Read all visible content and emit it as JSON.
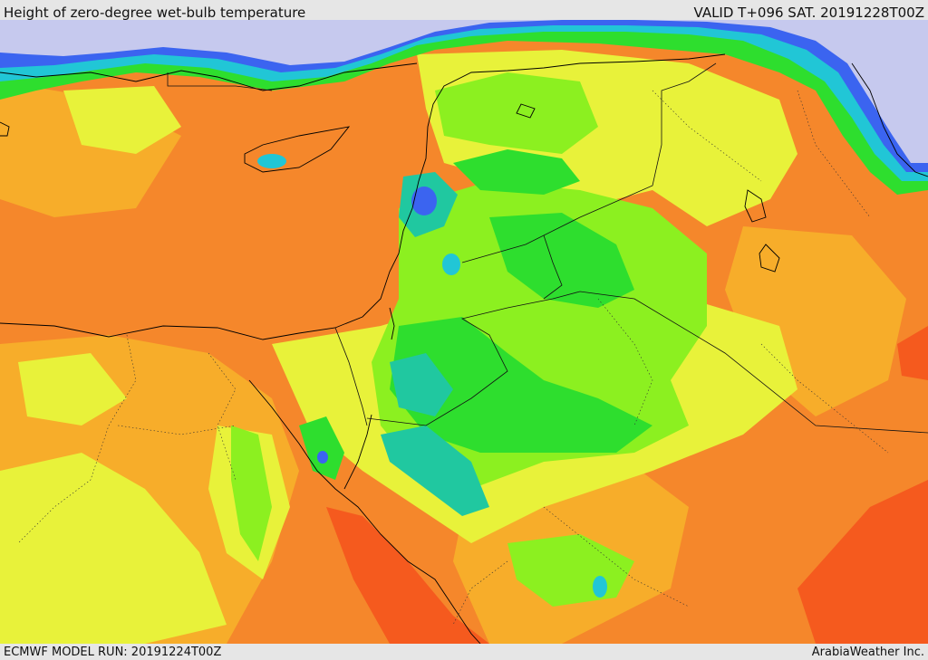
{
  "header": {
    "title": "Height of zero-degree wet-bulb temperature",
    "valid": "VALID T+096 SAT. 20191228T00Z"
  },
  "footer": {
    "model_run": "ECMWF MODEL RUN: 20191224T00Z",
    "credit": "ArabiaWeather Inc."
  },
  "colors": {
    "header_bg": "#e6e6e6",
    "lowest_band": "#c6c9ee",
    "blue_band": "#3b64f0",
    "cyan_band": "#21c6d6",
    "teal_band": "#20c8a0",
    "green_band": "#2ede2e",
    "lime_band": "#8cf020",
    "yellow_band": "#e8f23a",
    "orange_light_band": "#f7ad2a",
    "orange_band": "#f5872b",
    "red_band": "#f55a1e"
  }
}
